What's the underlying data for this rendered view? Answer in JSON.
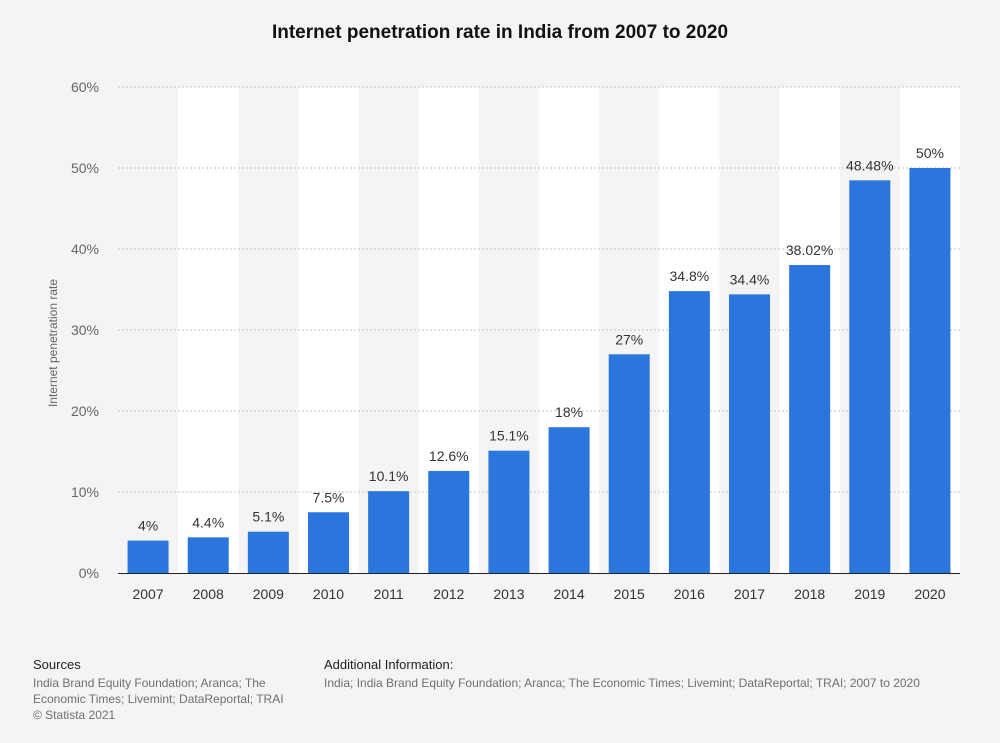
{
  "chart_data": {
    "type": "bar",
    "title": "Internet penetration rate in India from 2007 to 2020",
    "ylabel": "Internet penetration rate",
    "xlabel": "",
    "ylim": [
      0,
      60
    ],
    "yticks": [
      0,
      10,
      20,
      30,
      40,
      50,
      60
    ],
    "ytick_labels": [
      "0%",
      "10%",
      "20%",
      "30%",
      "40%",
      "50%",
      "60%"
    ],
    "grid": true,
    "legend": "none",
    "bar_color": "#2a76dd",
    "categories": [
      "2007",
      "2008",
      "2009",
      "2010",
      "2011",
      "2012",
      "2013",
      "2014",
      "2015",
      "2016",
      "2017",
      "2018",
      "2019",
      "2020"
    ],
    "values": [
      4,
      4.4,
      5.1,
      7.5,
      10.1,
      12.6,
      15.1,
      18,
      27,
      34.8,
      34.4,
      38.02,
      48.48,
      50
    ],
    "data_labels": [
      "4%",
      "4.4%",
      "5.1%",
      "7.5%",
      "10.1%",
      "12.6%",
      "15.1%",
      "18%",
      "27%",
      "34.8%",
      "34.4%",
      "38.02%",
      "48.48%",
      "50%"
    ]
  },
  "footer": {
    "sources_heading": "Sources",
    "sources_text": "India Brand Equity Foundation; Aranca; The Economic Times; Livemint; DataReportal; TRAI",
    "copyright": "© Statista 2021",
    "info_heading": "Additional Information:",
    "info_text": "India; India Brand Equity Foundation; Aranca; The Economic Times; Livemint; DataReportal; TRAI; 2007 to 2020"
  }
}
